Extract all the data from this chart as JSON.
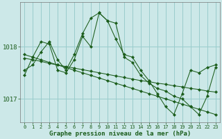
{
  "background_color": "#cce8e8",
  "grid_color": "#99cccc",
  "line_color": "#1a5c1a",
  "xlabel": "Graphe pression niveau de la mer (hPa)",
  "xlim": [
    -0.5,
    23.5
  ],
  "ylim": [
    1016.55,
    1018.85
  ],
  "yticks": [
    1017,
    1018
  ],
  "xtick_labels": [
    "0",
    "1",
    "2",
    "3",
    "4",
    "5",
    "6",
    "7",
    "8",
    "9",
    "10",
    "11",
    "12",
    "13",
    "14",
    "15",
    "16",
    "17",
    "18",
    "19",
    "20",
    "21",
    "22",
    "23"
  ],
  "series": [
    {
      "x": [
        0,
        1,
        2,
        3,
        4,
        5,
        6,
        7,
        8,
        9,
        10,
        11,
        12,
        13,
        14,
        15,
        16,
        17,
        18,
        19,
        20,
        21,
        22,
        23
      ],
      "y": [
        1017.55,
        1017.65,
        1017.9,
        1018.1,
        1017.75,
        1017.55,
        1017.85,
        1018.25,
        1018.55,
        1018.65,
        1018.5,
        1018.15,
        1017.85,
        1017.8,
        1017.55,
        1017.35,
        1017.1,
        1016.85,
        1016.7,
        1017.1,
        1017.55,
        1017.5,
        1017.6,
        1017.65
      ]
    },
    {
      "x": [
        0,
        1,
        2,
        3,
        4,
        5,
        6,
        7,
        8,
        9,
        10,
        11,
        12,
        13,
        14,
        15,
        16,
        17,
        18,
        19,
        20,
        21,
        22,
        23
      ],
      "y": [
        1017.45,
        1017.8,
        1018.1,
        1018.05,
        1017.55,
        1017.5,
        1017.75,
        1018.2,
        1018.0,
        1018.65,
        1018.5,
        1018.45,
        1017.8,
        1017.7,
        1017.45,
        1017.3,
        1017.2,
        1017.15,
        1017.05,
        1017.0,
        1016.85,
        1016.7,
        1017.05,
        1017.6
      ]
    },
    {
      "x": [
        0,
        1,
        2,
        3,
        4,
        5,
        6,
        7,
        8,
        9,
        10,
        11,
        12,
        13,
        14,
        15,
        16,
        17,
        18,
        19,
        20,
        21,
        22,
        23
      ],
      "y": [
        1017.78,
        1017.75,
        1017.72,
        1017.68,
        1017.65,
        1017.62,
        1017.59,
        1017.56,
        1017.53,
        1017.5,
        1017.47,
        1017.44,
        1017.41,
        1017.38,
        1017.35,
        1017.33,
        1017.3,
        1017.28,
        1017.25,
        1017.23,
        1017.2,
        1017.18,
        1017.15,
        1017.13
      ]
    },
    {
      "x": [
        0,
        1,
        2,
        3,
        4,
        5,
        6,
        7,
        8,
        9,
        10,
        11,
        12,
        13,
        14,
        15,
        16,
        17,
        18,
        19,
        20,
        21,
        22,
        23
      ],
      "y": [
        1017.85,
        1017.8,
        1017.75,
        1017.7,
        1017.65,
        1017.6,
        1017.55,
        1017.5,
        1017.45,
        1017.4,
        1017.35,
        1017.3,
        1017.25,
        1017.2,
        1017.15,
        1017.1,
        1017.05,
        1017.0,
        1016.95,
        1016.9,
        1016.85,
        1016.8,
        1016.75,
        1016.7
      ]
    }
  ]
}
